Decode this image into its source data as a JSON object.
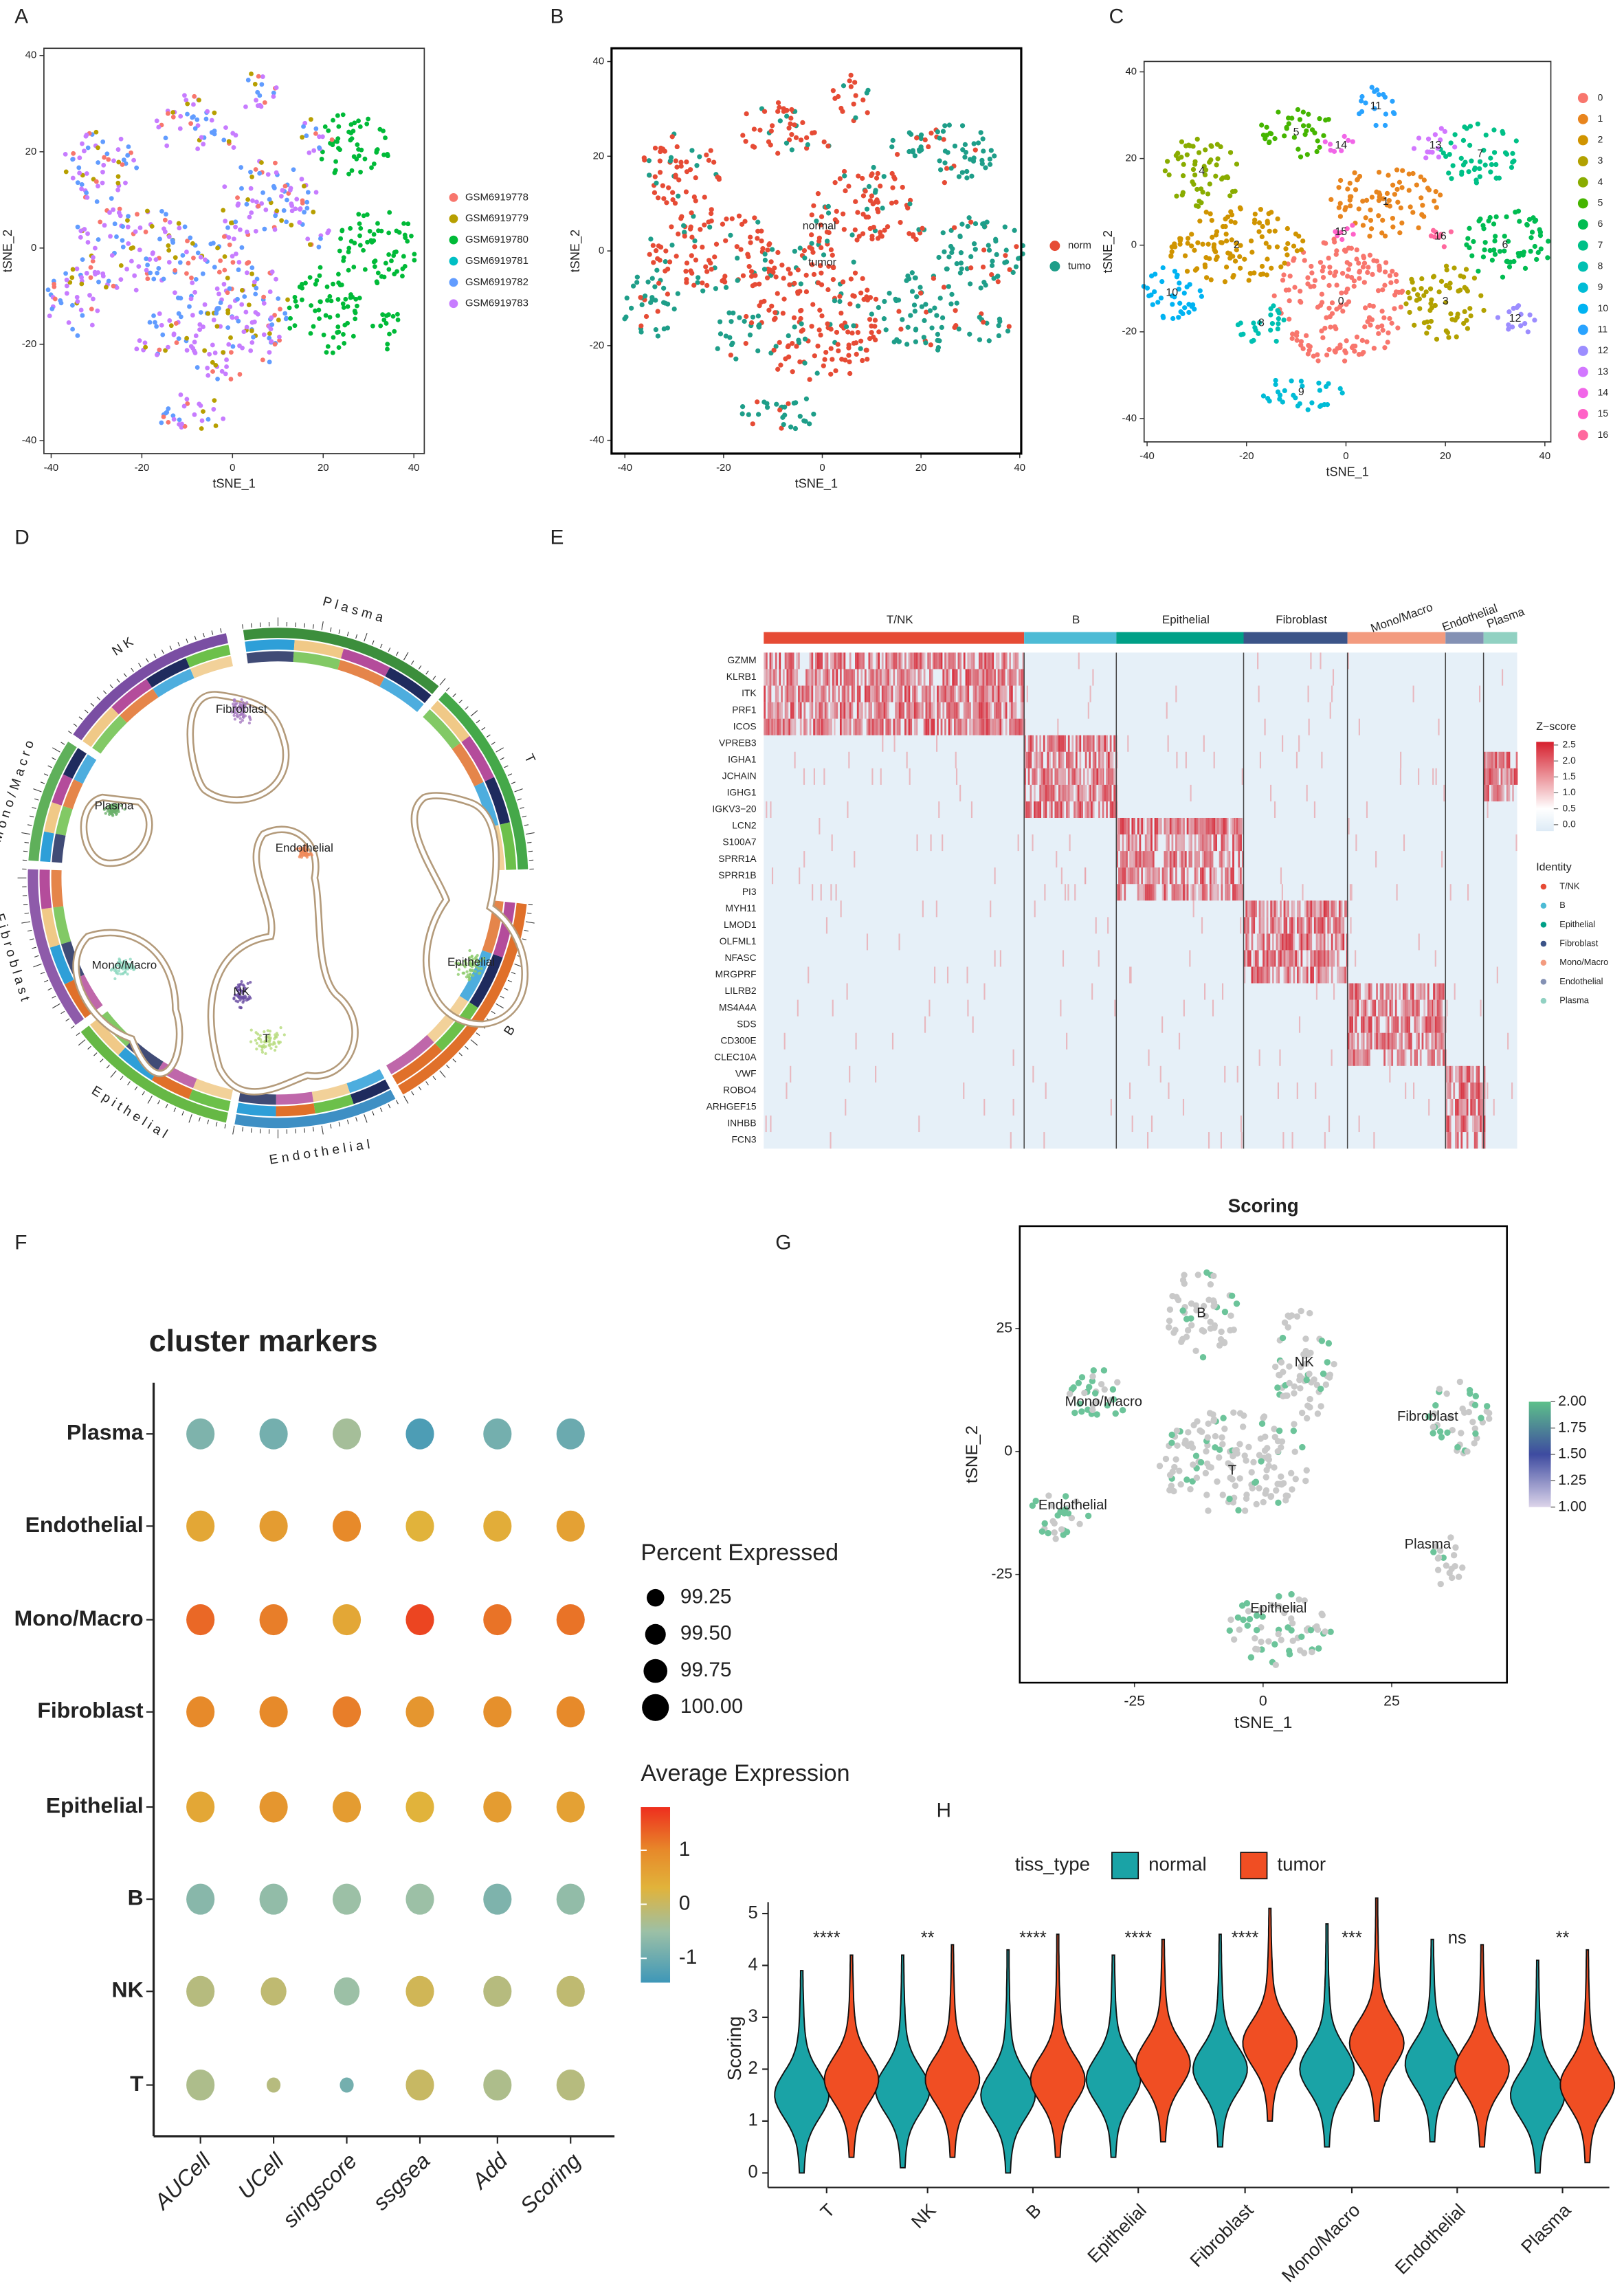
{
  "panel_labels": [
    "A",
    "B",
    "C",
    "D",
    "E",
    "F",
    "G",
    "H"
  ],
  "chart_data": [
    {
      "type": "scatter",
      "xlabel": "tSNE_1",
      "ylabel": "tSNE_2",
      "xlim": [
        -41.6,
        42.3
      ],
      "ylim": [
        -42.7,
        41.5
      ],
      "xticks": [
        -40,
        -20,
        0,
        20,
        40
      ],
      "yticks": [
        -40,
        -20,
        0,
        20,
        40
      ],
      "series": [
        {
          "name": "GSM6919778",
          "color": "#F8766D"
        },
        {
          "name": "GSM6919779",
          "color": "#B79F00"
        },
        {
          "name": "GSM6919780",
          "color": "#00BA38"
        },
        {
          "name": "GSM6919781",
          "color": "#00BFC4"
        },
        {
          "name": "GSM6919782",
          "color": "#619CFF"
        },
        {
          "name": "GSM6919783",
          "color": "#C77CFF"
        }
      ]
    },
    {
      "type": "scatter",
      "xlabel": "tSNE_1",
      "ylabel": "tSNE_2",
      "xlim": [
        -42.7,
        40.3
      ],
      "ylim": [
        -42.8,
        42.8
      ],
      "xticks": [
        -40,
        -20,
        0,
        20,
        40
      ],
      "yticks": [
        -40,
        -20,
        0,
        20,
        40
      ],
      "series": [
        {
          "name": "norm",
          "color": "#E64B35"
        },
        {
          "name": "tumo",
          "color": "#1E9E89"
        }
      ],
      "annotations": [
        {
          "text": "normal",
          "x": -0.6,
          "y": 5.2
        },
        {
          "text": "tumor",
          "x": 0,
          "y": -2.5
        }
      ]
    },
    {
      "type": "scatter",
      "xlabel": "tSNE_1",
      "ylabel": "tSNE_2",
      "xlim": [
        -40.6,
        41.2
      ],
      "ylim": [
        -45.4,
        42.4
      ],
      "xticks": [
        -40,
        -20,
        0,
        20,
        40
      ],
      "yticks": [
        -40,
        -20,
        0,
        20,
        40
      ],
      "series": [
        {
          "name": "0",
          "color": "#F8766D"
        },
        {
          "name": "1",
          "color": "#E8851E"
        },
        {
          "name": "2",
          "color": "#D09400"
        },
        {
          "name": "3",
          "color": "#B2A100"
        },
        {
          "name": "4",
          "color": "#89AC00"
        },
        {
          "name": "5",
          "color": "#45B500"
        },
        {
          "name": "6",
          "color": "#00BC51"
        },
        {
          "name": "7",
          "color": "#00C087"
        },
        {
          "name": "8",
          "color": "#00C0B2"
        },
        {
          "name": "9",
          "color": "#00BCD6"
        },
        {
          "name": "10",
          "color": "#00B3F2"
        },
        {
          "name": "11",
          "color": "#29A3FF"
        },
        {
          "name": "12",
          "color": "#9C8DFF"
        },
        {
          "name": "13",
          "color": "#D277FF"
        },
        {
          "name": "14",
          "color": "#F166E8"
        },
        {
          "name": "15",
          "color": "#FF61C7"
        },
        {
          "name": "16",
          "color": "#FF689E"
        }
      ],
      "annotations": [
        {
          "text": "0",
          "x": -1,
          "y": -13
        },
        {
          "text": "1",
          "x": 8,
          "y": 10
        },
        {
          "text": "2",
          "x": -22,
          "y": 0
        },
        {
          "text": "3",
          "x": 20,
          "y": -13
        },
        {
          "text": "4",
          "x": -29,
          "y": 17
        },
        {
          "text": "5",
          "x": -10,
          "y": 26
        },
        {
          "text": "6",
          "x": 32,
          "y": 0
        },
        {
          "text": "7",
          "x": 27,
          "y": 21
        },
        {
          "text": "8",
          "x": -17,
          "y": -18
        },
        {
          "text": "9",
          "x": -9,
          "y": -34
        },
        {
          "text": "10",
          "x": -35,
          "y": -11
        },
        {
          "text": "11",
          "x": 6,
          "y": 32
        },
        {
          "text": "12",
          "x": 34,
          "y": -17
        },
        {
          "text": "13",
          "x": 18,
          "y": 23
        },
        {
          "text": "14",
          "x": -1,
          "y": 23
        },
        {
          "text": "15",
          "x": -1,
          "y": 3
        },
        {
          "text": "16",
          "x": 19,
          "y": 2
        }
      ]
    },
    {
      "type": "circos",
      "sectors": [
        {
          "name": "Plasma",
          "color": "#3C8E3C"
        },
        {
          "name": "T",
          "color": "#45A849"
        },
        {
          "name": "B",
          "color": "#E0702A"
        },
        {
          "name": "Endothelial",
          "color": "#3E8FC4"
        },
        {
          "name": "Epithelial",
          "color": "#66B845"
        },
        {
          "name": "Fibroblast",
          "color": "#8E5BAA"
        },
        {
          "name": "Mono/Macro",
          "color": "#5FB05A"
        },
        {
          "name": "NK",
          "color": "#7A4EA3"
        }
      ],
      "clusters": [
        "Fibroblast",
        "Plasma",
        "Endothelial",
        "Epithelial",
        "Mono/Macro",
        "NK",
        "T"
      ]
    },
    {
      "type": "heatmap",
      "groups": [
        {
          "name": "T/NK",
          "color": "#E64B35"
        },
        {
          "name": "B",
          "color": "#4DBBD5"
        },
        {
          "name": "Epithelial",
          "color": "#00A087"
        },
        {
          "name": "Fibroblast",
          "color": "#3C5488"
        },
        {
          "name": "Mono/Macro",
          "color": "#F39B7F"
        },
        {
          "name": "Endothelial",
          "color": "#8491B4"
        },
        {
          "name": "Plasma",
          "color": "#91D1C2"
        }
      ],
      "genes": [
        "GZMM",
        "KLRB1",
        "ITK",
        "PRF1",
        "ICOS",
        "VPREB3",
        "IGHA1",
        "JCHAIN",
        "IGHG1",
        "IGKV3−20",
        "LCN2",
        "S100A7",
        "SPRR1A",
        "SPRR1B",
        "PI3",
        "MYH11",
        "LMOD1",
        "OLFML1",
        "NFASC",
        "MRGPRF",
        "LILRB2",
        "MS4A4A",
        "SDS",
        "CD300E",
        "CLEC10A",
        "VWF",
        "ROBO4",
        "ARHGEF15",
        "INHBB",
        "FCN3"
      ],
      "legend_title": "Z−score",
      "zlim": [
        -0.2,
        2.6
      ],
      "zticks": [
        2.5,
        {
          "value": 2,
          "label": "2.0"
        },
        1.5,
        {
          "value": 1,
          "label": "1.0"
        },
        0.5,
        {
          "value": 0,
          "label": "0.0"
        }
      ],
      "identity_title": "Identity"
    },
    {
      "type": "dot",
      "title": "cluster markers",
      "categories": [
        "AUCell",
        "UCell",
        "singscore",
        "ssgsea",
        "Add",
        "Scoring"
      ],
      "rows": [
        "Plasma",
        "Endothelial",
        "Mono/Macro",
        "Fibroblast",
        "Epithelial",
        "B",
        "NK",
        "T"
      ],
      "values": [
        [
          -0.8,
          -0.9,
          -0.4,
          -1.3,
          -0.9,
          -1.0
        ],
        [
          0.5,
          0.7,
          1.0,
          0.3,
          0.4,
          0.6
        ],
        [
          1.3,
          1.1,
          0.5,
          1.6,
          1.2,
          1.2
        ],
        [
          1.0,
          1.0,
          1.1,
          0.8,
          0.9,
          1.0
        ],
        [
          0.5,
          0.8,
          0.7,
          0.3,
          0.7,
          0.6
        ],
        [
          -0.7,
          -0.6,
          -0.5,
          -0.5,
          -0.8,
          -0.6
        ],
        [
          -0.2,
          -0.1,
          -0.5,
          0.1,
          -0.2,
          -0.1
        ],
        [
          -0.3,
          -0.2,
          -0.9,
          0.0,
          -0.3,
          -0.2
        ]
      ],
      "percent": [
        [
          100,
          100,
          100,
          100,
          100,
          100
        ],
        [
          100,
          100,
          100,
          100,
          100,
          100
        ],
        [
          100,
          100,
          100,
          100,
          100,
          100
        ],
        [
          100,
          100,
          100,
          100,
          100,
          100
        ],
        [
          100,
          100,
          100,
          100,
          100,
          100
        ],
        [
          100,
          100,
          100,
          100,
          100,
          100
        ],
        [
          100,
          99.8,
          99.8,
          100,
          100,
          100
        ],
        [
          100,
          98.9,
          98.9,
          100,
          100,
          100
        ]
      ],
      "size_title": "Percent Expressed",
      "size_ticks": [
        99.25,
        {
          "value": 99.5,
          "label": "99.50"
        },
        99.75,
        {
          "value": 100,
          "label": "100.00"
        }
      ],
      "color_title": "Average Expression",
      "clim": [
        -1.45,
        1.8
      ],
      "cticks": [
        1,
        0,
        -1
      ]
    },
    {
      "type": "scatter",
      "title": "Scoring",
      "xlabel": "tSNE_1",
      "ylabel": "tSNE_2",
      "xlim": [
        -47.3,
        47.4
      ],
      "ylim": [
        -47,
        45.8
      ],
      "xticks": [
        -25,
        0,
        25
      ],
      "yticks": [
        -25,
        0,
        25
      ],
      "clim": [
        1,
        2
      ],
      "cticks": [
        {
          "value": 2,
          "label": "2.00"
        },
        1.75,
        {
          "value": 1.5,
          "label": "1.50"
        },
        1.25,
        {
          "value": 1,
          "label": "1.00"
        }
      ],
      "annotations": [
        {
          "text": "B",
          "x": -12,
          "y": 28
        },
        {
          "text": "NK",
          "x": 8,
          "y": 18
        },
        {
          "text": "Mono/Macro",
          "x": -31,
          "y": 10
        },
        {
          "text": "Fibroblast",
          "x": 32,
          "y": 7
        },
        {
          "text": "T",
          "x": -6,
          "y": -4
        },
        {
          "text": "Endothelial",
          "x": -37,
          "y": -11
        },
        {
          "text": "Plasma",
          "x": 32,
          "y": -19
        },
        {
          "text": "Epithelial",
          "x": 3,
          "y": -32
        }
      ]
    },
    {
      "type": "violin",
      "ylabel": "Scoring",
      "legend_title": "tiss_type",
      "categories": [
        "T",
        "NK",
        "B",
        "Epithelial",
        "Fibroblast",
        "Mono/Macro",
        "Endothelial",
        "Plasma"
      ],
      "ylim": [
        -0.28,
        5.22
      ],
      "yticks": [
        0,
        1,
        2,
        3,
        4,
        5
      ],
      "series": [
        {
          "name": "normal",
          "color": "#1AA3A6",
          "values": [
            1.5,
            1.6,
            1.5,
            1.8,
            2.0,
            2.0,
            2.1,
            1.5
          ]
        },
        {
          "name": "tumor",
          "color": "#F04E23",
          "values": [
            1.8,
            1.8,
            1.8,
            2.1,
            2.5,
            2.5,
            2.0,
            1.7
          ]
        }
      ],
      "significance": [
        "****",
        "**",
        "****",
        "****",
        "****",
        "***",
        "ns",
        "**"
      ]
    }
  ]
}
